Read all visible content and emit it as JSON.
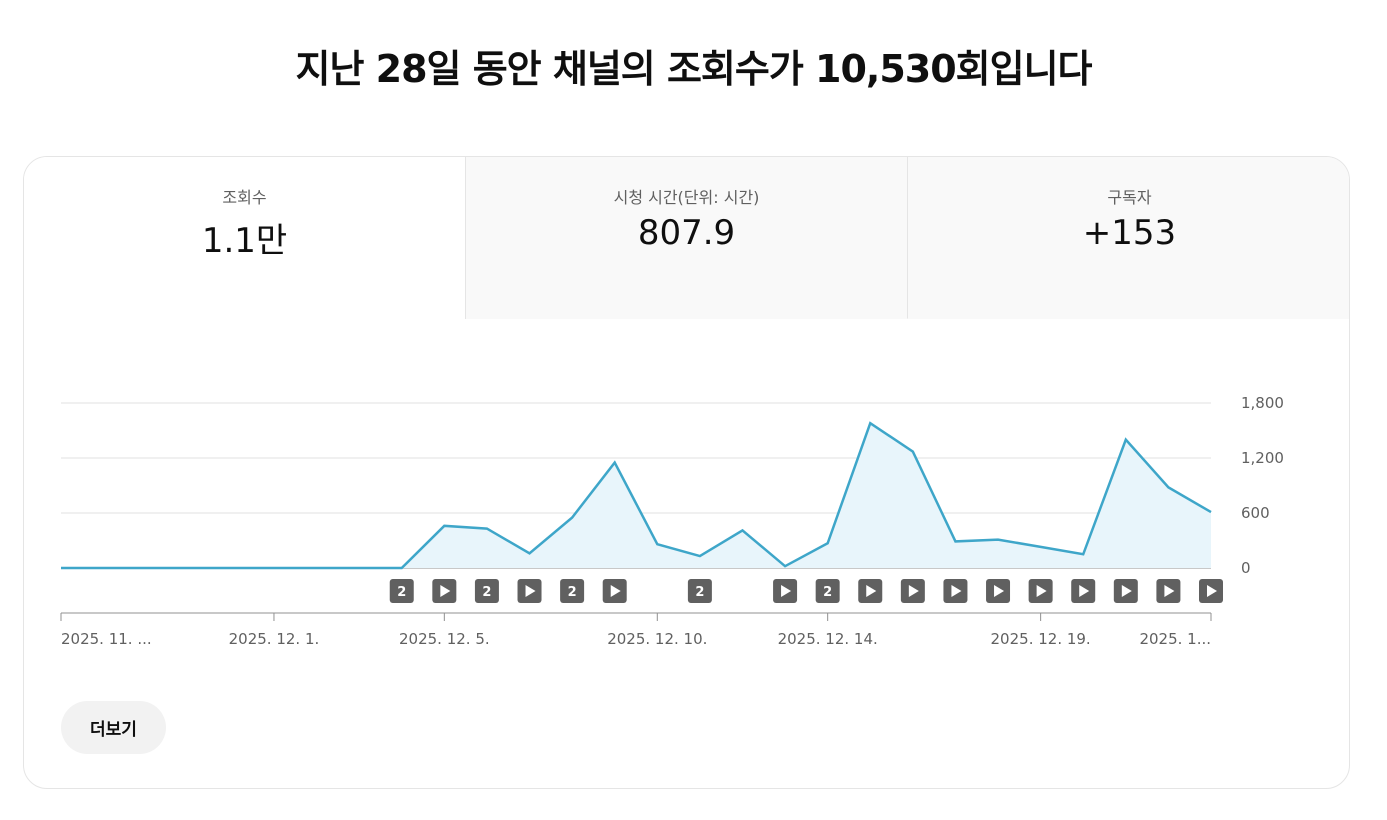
{
  "headline": "지난 28일 동안 채널의 조회수가 10,530회입니다",
  "tabs": [
    {
      "label": "조회수",
      "value": "1.1만",
      "active": true
    },
    {
      "label": "시청 시간(단위: 시간)",
      "value": "807.9",
      "active": false
    },
    {
      "label": "구독자",
      "value": "+153",
      "active": false
    }
  ],
  "more_button": "더보기",
  "colors": {
    "line": "#3ea6c9",
    "area_fill": "#e8f5fb",
    "marker": "#606060"
  },
  "chart_data": {
    "type": "area",
    "x_tick_labels": [
      "2025. 11. ...",
      "2025. 12. 1.",
      "2025. 12. 5.",
      "2025. 12. 10.",
      "2025. 12. 14.",
      "2025. 12. 19.",
      "2025. 1..."
    ],
    "x_tick_day_index": [
      0,
      5,
      9,
      14,
      18,
      23,
      27
    ],
    "y_tick_labels": [
      "0",
      "600",
      "1,200",
      "1,800"
    ],
    "y_ticks": [
      0,
      600,
      1200,
      1800
    ],
    "ylim": [
      0,
      1800
    ],
    "ylabel_position": "right",
    "grid": true,
    "series": [
      {
        "values": [
          0,
          0,
          0,
          0,
          0,
          0,
          0,
          0,
          0,
          460,
          430,
          160,
          550,
          1150,
          260,
          130,
          410,
          20,
          270,
          1580,
          1270,
          290,
          310,
          230,
          150,
          1400,
          880,
          610
        ]
      }
    ],
    "upload_markers": [
      {
        "day": 8,
        "kind": "count",
        "label": "2"
      },
      {
        "day": 9,
        "kind": "play"
      },
      {
        "day": 10,
        "kind": "count",
        "label": "2"
      },
      {
        "day": 11,
        "kind": "play"
      },
      {
        "day": 12,
        "kind": "count",
        "label": "2"
      },
      {
        "day": 13,
        "kind": "play"
      },
      {
        "day": 15,
        "kind": "count",
        "label": "2"
      },
      {
        "day": 17,
        "kind": "play"
      },
      {
        "day": 18,
        "kind": "count",
        "label": "2"
      },
      {
        "day": 19,
        "kind": "play"
      },
      {
        "day": 20,
        "kind": "play"
      },
      {
        "day": 21,
        "kind": "play"
      },
      {
        "day": 22,
        "kind": "play"
      },
      {
        "day": 23,
        "kind": "play"
      },
      {
        "day": 24,
        "kind": "play"
      },
      {
        "day": 25,
        "kind": "play"
      },
      {
        "day": 26,
        "kind": "play"
      },
      {
        "day": 27,
        "kind": "play"
      }
    ]
  }
}
